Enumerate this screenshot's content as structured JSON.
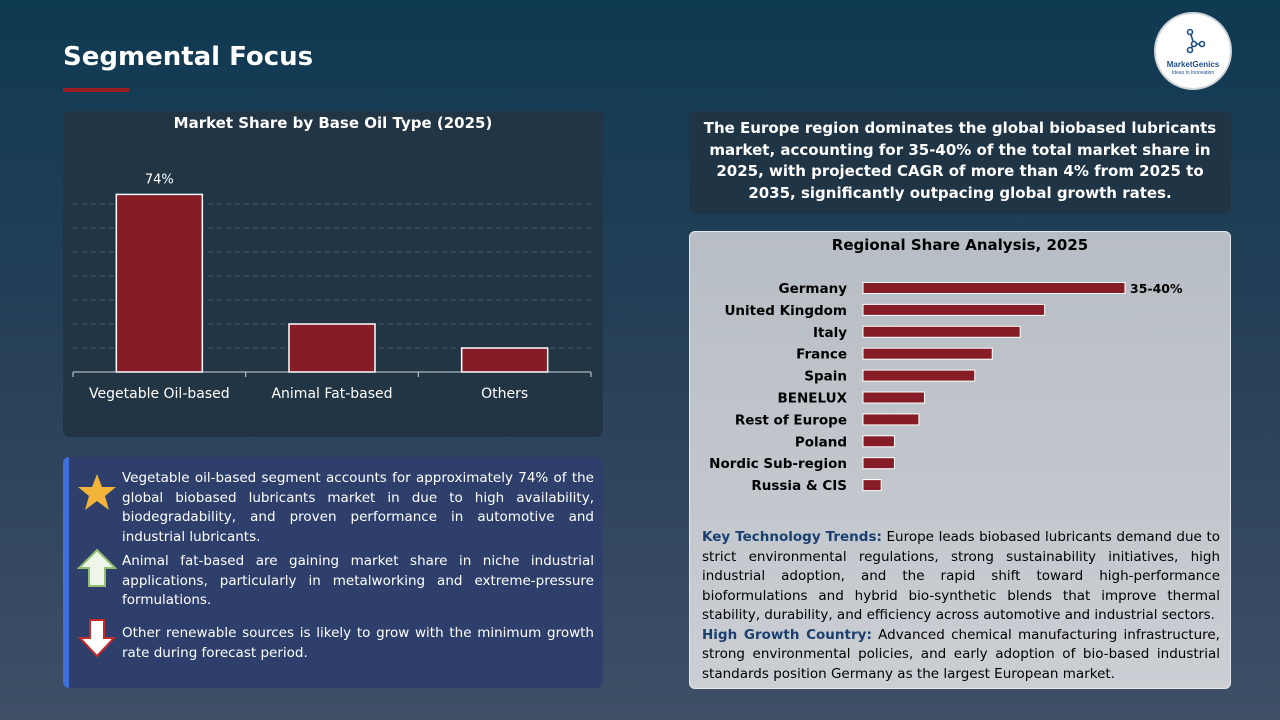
{
  "page": {
    "title": "Segmental Focus"
  },
  "logo": {
    "name": "MarketGenics",
    "tagline": "Ideas to Innovation"
  },
  "colors": {
    "accent": "#9b1c24",
    "bar": "#861c25",
    "bullet_border": "#3f6fd8"
  },
  "chart_data": [
    {
      "type": "bar",
      "title": "Market Share by Base Oil Type (2025)",
      "categories": [
        "Vegetable Oil-based",
        "Animal Fat-based",
        "Others"
      ],
      "values": [
        74,
        20,
        10
      ],
      "data_labels": [
        "74%",
        "",
        ""
      ],
      "ylim": [
        0,
        80
      ],
      "grid": true,
      "xlabel": "",
      "ylabel": ""
    },
    {
      "type": "bar",
      "orientation": "horizontal",
      "title": "Regional Share Analysis, 2025",
      "categories": [
        "Germany",
        "United Kingdom",
        "Italy",
        "France",
        "Spain",
        "BENELUX",
        "Rest of Europe",
        "Poland",
        "Nordic Sub-region",
        "Russia & CIS"
      ],
      "values": [
        37.5,
        26,
        22.5,
        18.5,
        16,
        8.8,
        8,
        4.5,
        4.5,
        2.6
      ],
      "data_labels": [
        "35-40%",
        "",
        "",
        "",
        "",
        "",
        "",
        "",
        "",
        ""
      ],
      "xlim": [
        0,
        37.5
      ],
      "grid": false
    }
  ],
  "bullets": [
    {
      "icon": "star-icon",
      "text": "Vegetable oil-based segment accounts for approximately 74% of the global biobased lubricants market in due to high availability, biodegradability, and proven performance in automotive and industrial lubricants."
    },
    {
      "icon": "arrow-up-icon",
      "text": "Animal fat-based are gaining market share in niche industrial applications, particularly in metalworking and extreme-pressure formulations."
    },
    {
      "icon": "arrow-down-icon",
      "text": "Other renewable sources is likely to grow with the minimum growth rate during forecast period."
    }
  ],
  "summary": {
    "text": "The Europe region dominates the global biobased lubricants market, accounting for 35-40% of the total market share in 2025, with projected CAGR of more than 4% from 2025 to 2035, significantly outpacing global growth rates."
  },
  "trends": [
    {
      "heading": "Key Technology Trends:",
      "text": " Europe leads biobased lubricants demand due to strict environmental regulations, strong sustainability initiatives, high industrial adoption, and the rapid shift toward high-performance bioformulations and hybrid bio-synthetic blends that improve thermal stability, durability, and efficiency across automotive and industrial sectors."
    },
    {
      "heading": "High Growth Country:",
      "text": " Advanced chemical manufacturing infrastructure, strong environmental policies, and early adoption of bio-based industrial standards position Germany as the largest European market."
    }
  ]
}
